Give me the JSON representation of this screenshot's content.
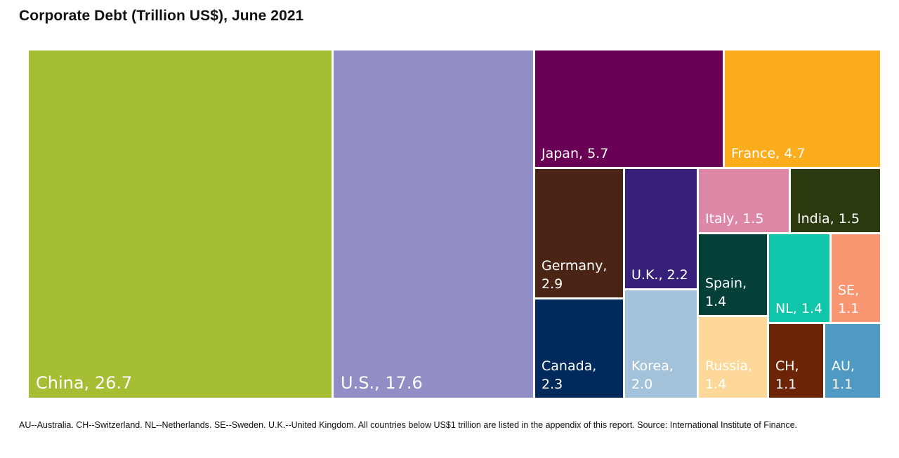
{
  "header": {
    "title": "Corporate Debt (Trillion US$), June 2021"
  },
  "chart_data": {
    "type": "treemap",
    "title": "Corporate Debt (Trillion US$), June 2021",
    "unit": "Trillion US$",
    "items": [
      {
        "name": "China",
        "value": 26.7,
        "label": "China, 26.7",
        "color": "#a4bf34",
        "text_color": "#ffffff"
      },
      {
        "name": "U.S.",
        "value": 17.6,
        "label": "U.S., 17.6",
        "color": "#918dc5",
        "text_color": "#ffffff"
      },
      {
        "name": "Japan",
        "value": 5.7,
        "label": "Japan, 5.7",
        "color": "#6a0056",
        "text_color": "#ffffff"
      },
      {
        "name": "France",
        "value": 4.7,
        "label": "France, 4.7",
        "color": "#fdac1c",
        "text_color": "#ffffff"
      },
      {
        "name": "Germany",
        "value": 2.9,
        "label": "Germany,\n2.9",
        "color": "#4a2515",
        "text_color": "#ffffff"
      },
      {
        "name": "Canada",
        "value": 2.3,
        "label": "Canada,\n2.3",
        "color": "#002a5c",
        "text_color": "#ffffff"
      },
      {
        "name": "U.K.",
        "value": 2.2,
        "label": "U.K., 2.2",
        "color": "#37207a",
        "text_color": "#ffffff"
      },
      {
        "name": "Korea",
        "value": 2.0,
        "label": "Korea,\n2.0",
        "color": "#a3c2d9",
        "text_color": "#ffffff"
      },
      {
        "name": "Italy",
        "value": 1.5,
        "label": "Italy, 1.5",
        "color": "#dd88a6",
        "text_color": "#ffffff"
      },
      {
        "name": "India",
        "value": 1.5,
        "label": "India, 1.5",
        "color": "#2b3b0f",
        "text_color": "#ffffff"
      },
      {
        "name": "Spain",
        "value": 1.4,
        "label": "Spain,\n1.4",
        "color": "#043f38",
        "text_color": "#ffffff"
      },
      {
        "name": "NL",
        "value": 1.4,
        "label": "NL, 1.4",
        "color": "#10c6aa",
        "text_color": "#ffffff"
      },
      {
        "name": "SE",
        "value": 1.1,
        "label": "SE,\n1.1",
        "color": "#f79671",
        "text_color": "#ffffff"
      },
      {
        "name": "Russia",
        "value": 1.4,
        "label": "Russia,\n1.4",
        "color": "#fdd898",
        "text_color": "#ffffff"
      },
      {
        "name": "CH",
        "value": 1.1,
        "label": "CH,\n1.1",
        "color": "#6c2406",
        "text_color": "#ffffff"
      },
      {
        "name": "AU",
        "value": 1.1,
        "label": "AU,\n1.1",
        "color": "#4f99c3",
        "text_color": "#ffffff"
      }
    ]
  },
  "footnote": "AU--Australia. CH--Switzerland. NL--Netherlands. SE--Sweden. U.K.--United Kingdom. All countries below US$1 trillion are listed in the appendix of this report. Source: International Institute of Finance."
}
